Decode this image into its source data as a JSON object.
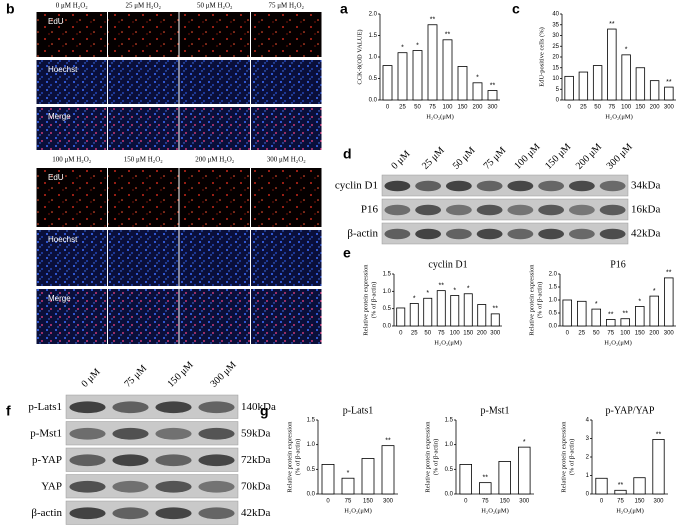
{
  "chart_data": [
    {
      "type": "bar",
      "ylabel": [
        "CCK-8(OD VALUE)"
      ],
      "xlabel": "H₂O₂(μM)",
      "color": "#ffffff",
      "categories": [
        "0",
        "25",
        "50",
        "75",
        "100",
        "150",
        "200",
        "300"
      ],
      "values": [
        0.8,
        1.1,
        1.15,
        1.75,
        1.4,
        0.78,
        0.4,
        0.22
      ],
      "significance": [
        null,
        "*",
        "*",
        "**",
        "**",
        null,
        "*",
        "**"
      ],
      "ylim": [
        0,
        2
      ],
      "yticks": [
        {
          "value": 0,
          "label": "0.0"
        },
        {
          "value": 0.5,
          "label": "0.5"
        },
        {
          "value": 1,
          "label": "1.0"
        },
        {
          "value": 1.5,
          "label": "1.5"
        },
        {
          "value": 2,
          "label": "2.0"
        }
      ]
    },
    {
      "type": "bar",
      "ylabel": [
        "EdU-positive cells (%)"
      ],
      "xlabel": "H₂O₂(μM)",
      "color": "#ffffff",
      "categories": [
        "0",
        "25",
        "50",
        "75",
        "100",
        "150",
        "200",
        "300"
      ],
      "values": [
        11,
        13,
        16,
        33,
        21,
        15,
        9,
        6
      ],
      "significance": [
        null,
        null,
        null,
        "**",
        "*",
        null,
        null,
        "**"
      ],
      "ylim": [
        0,
        40
      ],
      "yticks": [
        0,
        5,
        10,
        15,
        20,
        25,
        30,
        35,
        40
      ]
    },
    {
      "type": "bar",
      "title": "cyclin D1",
      "ylabel": [
        "Relative protein expression",
        "(% of β-actin)"
      ],
      "xlabel": "H₂O₂(μM)",
      "color": "#ffffff",
      "categories": [
        "0",
        "25",
        "50",
        "75",
        "100",
        "150",
        "200",
        "300"
      ],
      "values": [
        0.52,
        0.65,
        0.8,
        1.02,
        0.88,
        0.93,
        0.62,
        0.35
      ],
      "significance": [
        null,
        "*",
        "*",
        "**",
        "*",
        "*",
        null,
        "**"
      ],
      "ylim": [
        0,
        1.5
      ],
      "yticks": [
        {
          "value": 0,
          "label": "0.0"
        },
        {
          "value": 0.5,
          "label": "0.5"
        },
        {
          "value": 1,
          "label": "1.0"
        },
        {
          "value": 1.5,
          "label": "1.5"
        }
      ]
    },
    {
      "type": "bar",
      "title": "P16",
      "ylabel": [
        "Relative protein expression",
        "(% of β-actin)"
      ],
      "xlabel": "H₂O₂(μM)",
      "color": "#ffffff",
      "categories": [
        "0",
        "25",
        "50",
        "75",
        "100",
        "150",
        "200",
        "300"
      ],
      "values": [
        1.0,
        0.95,
        0.65,
        0.25,
        0.28,
        0.75,
        1.15,
        1.85
      ],
      "significance": [
        null,
        null,
        "*",
        "**",
        "**",
        "*",
        "*",
        "**"
      ],
      "ylim": [
        0,
        2
      ],
      "yticks": [
        {
          "value": 0,
          "label": "0.0"
        },
        {
          "value": 0.5,
          "label": "0.5"
        },
        {
          "value": 1,
          "label": "1.0"
        },
        {
          "value": 1.5,
          "label": "1.5"
        },
        {
          "value": 2,
          "label": "2.0"
        }
      ]
    },
    {
      "type": "bar",
      "title": "p-Lats1",
      "ylabel": [
        "Relative protein expression",
        "(% of β-actin)"
      ],
      "xlabel": "H₂O₂(μM)",
      "color": "#ffffff",
      "categories": [
        "0",
        "75",
        "150",
        "300"
      ],
      "values": [
        0.6,
        0.32,
        0.72,
        0.98
      ],
      "significance": [
        null,
        "*",
        null,
        "**"
      ],
      "ylim": [
        0,
        1.5
      ],
      "yticks": [
        {
          "value": 0,
          "label": "0.0"
        },
        {
          "value": 0.5,
          "label": "0.5"
        },
        {
          "value": 1,
          "label": "1.0"
        },
        {
          "value": 1.5,
          "label": "1.5"
        }
      ]
    },
    {
      "type": "bar",
      "title": "p-Mst1",
      "ylabel": [
        "Relative protein expression",
        "(% of β-actin)"
      ],
      "xlabel": "H₂O₂(μM)",
      "color": "#ffffff",
      "categories": [
        "0",
        "75",
        "150",
        "300"
      ],
      "values": [
        0.6,
        0.23,
        0.66,
        0.95
      ],
      "significance": [
        null,
        "**",
        null,
        "*"
      ],
      "ylim": [
        0,
        1.5
      ],
      "yticks": [
        {
          "value": 0,
          "label": "0.0"
        },
        {
          "value": 0.5,
          "label": "0.5"
        },
        {
          "value": 1,
          "label": "1.0"
        },
        {
          "value": 1.5,
          "label": "1.5"
        }
      ]
    },
    {
      "type": "bar",
      "title": "p-YAP/YAP",
      "ylabel": [
        "Relative protein expression",
        "(% of β-actin)"
      ],
      "xlabel": "H₂O₂(μM)",
      "color": "#ffffff",
      "categories": [
        "0",
        "75",
        "150",
        "300"
      ],
      "values": [
        0.85,
        0.2,
        0.88,
        2.95
      ],
      "significance": [
        null,
        "**",
        null,
        "**"
      ],
      "ylim": [
        0,
        4
      ],
      "yticks": [
        0,
        1,
        2,
        3,
        4
      ]
    }
  ],
  "figure": {
    "panel_labels": [
      "b",
      "a",
      "c",
      "d",
      "e",
      "f",
      "g"
    ],
    "microscopy": {
      "top_columns": [
        "0 μM H₂O₂",
        "25 μM H₂O₂",
        "50 μM H₂O₂",
        "75 μM H₂O₂"
      ],
      "bottom_columns": [
        "100 μM H₂O₂",
        "150 μM H₂O₂",
        "200 μM H₂O₂",
        "300 μM H₂O₂"
      ],
      "rows": [
        "EdU",
        "Hoechst",
        "Merge"
      ]
    },
    "blot_d": {
      "lanes": [
        "0 μM",
        "25 μM",
        "50 μM",
        "75 μM",
        "100 μM",
        "150 μM",
        "200 μM",
        "300 μM"
      ],
      "rows": [
        {
          "name": "cyclin D1",
          "size": "34kDa"
        },
        {
          "name": "P16",
          "size": "16kDa"
        },
        {
          "name": "β-actin",
          "size": "42kDa"
        }
      ]
    },
    "blot_f": {
      "lanes": [
        "0 μM",
        "75 μM",
        "150 μM",
        "300 μM"
      ],
      "rows": [
        {
          "name": "p-Lats1",
          "size": "140kDa"
        },
        {
          "name": "p-Mst1",
          "size": "59kDa"
        },
        {
          "name": "p-YAP",
          "size": "72kDa"
        },
        {
          "name": "YAP",
          "size": "70kDa"
        },
        {
          "name": "β-actin",
          "size": "42kDa"
        }
      ]
    }
  }
}
